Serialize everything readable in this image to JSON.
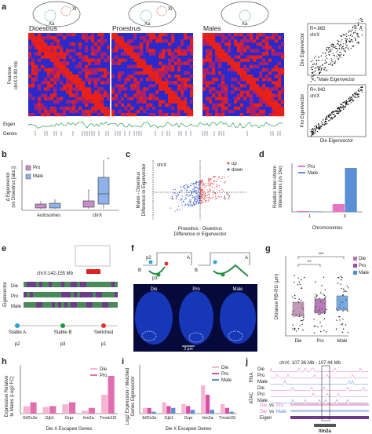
{
  "a": {
    "label": "a",
    "titles": [
      "Dioestrus",
      "Proestrus",
      "Males"
    ],
    "cell": {
      "xi": "Xi",
      "xa": "Xa"
    },
    "ylabel": [
      "Pearson",
      "chrX:0-80 mb"
    ],
    "tracks": [
      "Eigen",
      "Genes"
    ],
    "scatters": [
      {
        "r": "R=.665",
        "chrom": "chrX",
        "ylabel": "Die Eigenvector",
        "xlabel": "Male Eigenvector"
      },
      {
        "r": "R=.942",
        "chrom": "chrX",
        "ylabel": "Pro Eigenvector",
        "xlabel": "Die Eigenvector"
      }
    ]
  },
  "b": {
    "label": "b",
    "ylabel": [
      "Δ Eigenvector",
      "(vs Dioestrus [abs.])"
    ],
    "legend": [
      "Pro",
      "Male"
    ],
    "categories": [
      "Autosomes",
      "chrX"
    ],
    "stars": [
      "*",
      "*"
    ]
  },
  "c": {
    "label": "c",
    "chrom": "chrX",
    "legend": [
      "up",
      "down"
    ],
    "ylabel": [
      "Males - Dioestrus",
      "Difference in Eigenvector"
    ],
    "xlabel": [
      "Proestrus - Dioestrus",
      "Difference in Eigenvector"
    ],
    "xlim": [
      -3,
      3
    ],
    "xticks": [
      -1.7,
      0,
      1.7
    ]
  },
  "d": {
    "label": "d",
    "type": "bar",
    "ylabel": [
      "Relative Inter-chrom",
      "Interactions (vs Die)"
    ],
    "categories": [
      "1",
      "X"
    ],
    "xlabel": "Chromosomes",
    "series": [
      {
        "name": "Pro",
        "color": "#e377c2",
        "values": [
          0.05,
          0.5
        ]
      },
      {
        "name": "Male",
        "color": "#5b8fd6",
        "values": [
          0.03,
          2.8
        ]
      }
    ]
  },
  "e": {
    "label": "e",
    "region": "chrX:142-155 Mb",
    "tracks": [
      "Die",
      "Pro",
      "Male"
    ],
    "ylabel": "Eigenvector",
    "states": [
      "Stable A",
      "Stable B",
      "Switched"
    ],
    "probes": [
      "p2",
      "p3",
      "p1"
    ]
  },
  "f": {
    "label": "f",
    "probes": [
      "p2",
      "p3",
      "p1"
    ],
    "compartments": [
      "A",
      "B"
    ],
    "conditions": [
      "Die",
      "Pro",
      "Male"
    ],
    "scale": "2 μm"
  },
  "g": {
    "label": "g",
    "ylabel": "Distance RB-RG (μm)",
    "categories": [
      "Die",
      "Pro",
      "Male"
    ],
    "colors": [
      "#b07aa1",
      "#9c4fa0",
      "#4c8fd6"
    ],
    "stars": [
      "**",
      "***"
    ]
  },
  "h": {
    "label": "h",
    "type": "bar",
    "ylabel": [
      "Expression Relative",
      "to Males (Log2 FC)"
    ],
    "categories": [
      "Eif2s3x",
      "Gjb1",
      "Grpr",
      "Itm2a",
      "Tmsb15l"
    ],
    "xlabel": "Die X Escapee Genes",
    "series": [
      {
        "name": "Die",
        "color": "#f4b6d2",
        "values": [
          0.4,
          0.35,
          0.5,
          0.15,
          1.0
        ]
      },
      {
        "name": "Pro",
        "color": "#e06fb0",
        "values": [
          0.6,
          0.4,
          0.6,
          0.3,
          2.0
        ]
      }
    ]
  },
  "i": {
    "label": "i",
    "type": "bar",
    "ylabel": [
      "Log2 Expression / Matched",
      "Genes Eigenvector"
    ],
    "categories": [
      "Eif2s3x",
      "Gjb1",
      "Grpr",
      "Itm2a",
      "Tmsb15l"
    ],
    "xlabel": "Die X Escapee Genes",
    "series": [
      {
        "name": "Die",
        "color": "#f4b6d2",
        "values": [
          0.3,
          0.6,
          0.5,
          1.5,
          0.5
        ]
      },
      {
        "name": "Pro",
        "color": "#d94fa8",
        "values": [
          0.3,
          0.4,
          0.4,
          1.0,
          0.3
        ]
      },
      {
        "name": "Male",
        "color": "#5b8fd6",
        "values": [
          0.1,
          0.3,
          0.2,
          0.2,
          0.1
        ]
      }
    ]
  },
  "j": {
    "label": "j",
    "region": "chrX: 107.36 Mb - 107.44 Mb",
    "tracks": [
      "Die",
      "Pro",
      "Male",
      "Die",
      "Pro",
      "Male"
    ],
    "assays": [
      "ATAC",
      "RNA"
    ],
    "comparisons": [
      {
        "a": "Die",
        "vs": "vs",
        "b": "Pro"
      },
      {
        "a": "Die",
        "vs": "vs",
        "b": "Male"
      }
    ],
    "eigen": "Eigen",
    "gene": "Itm2a"
  }
}
